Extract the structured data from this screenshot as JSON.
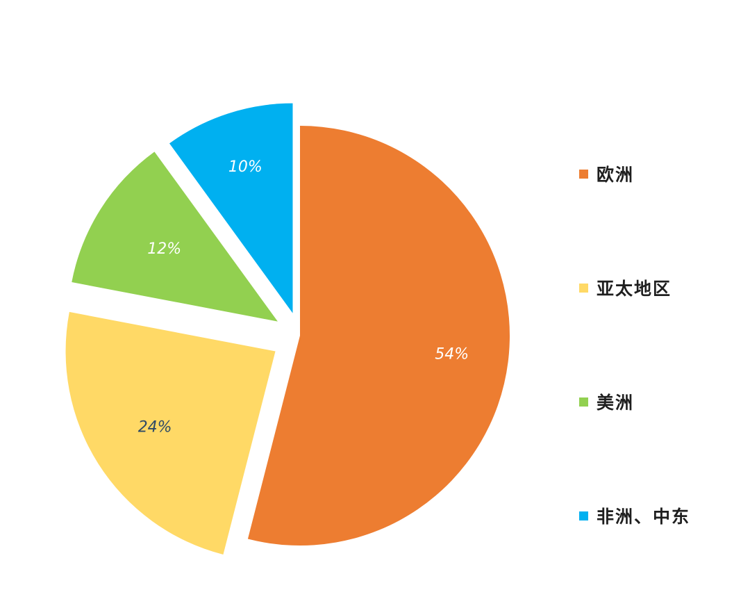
{
  "chart_data": {
    "type": "pie",
    "categories": [
      "欧洲",
      "亚太地区",
      "美洲",
      "非洲、中东"
    ],
    "values": [
      54,
      24,
      12,
      10
    ],
    "value_labels": [
      "54%",
      "24%",
      "12%",
      "10%"
    ],
    "colors": [
      "#ED7D31",
      "#FFD966",
      "#92D050",
      "#00B0F0"
    ],
    "label_colors": [
      "#ffffff",
      "#2E4A66",
      "#ffffff",
      "#ffffff"
    ],
    "exploded": true,
    "start_angle": "12 o'clock, clockwise",
    "legend_position": "right"
  }
}
